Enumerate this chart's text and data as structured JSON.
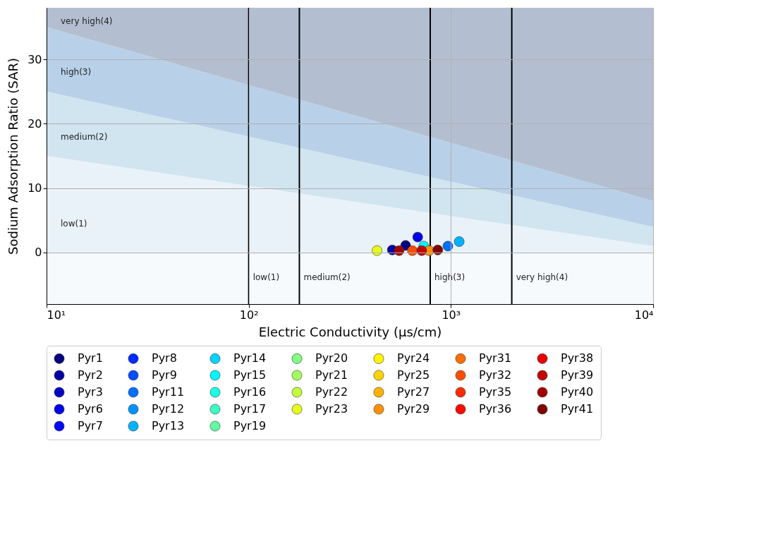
{
  "chart_data": {
    "type": "scatter",
    "xlabel": "Electric Conductivity (μs/cm)",
    "ylabel": "Sodium Adsorption Ratio (SAR)",
    "log": "x",
    "xlim": [
      10,
      10000
    ],
    "xticks": [
      {
        "value": 10,
        "label": "10¹"
      },
      {
        "value": 100,
        "label": "10²"
      },
      {
        "value": 1000,
        "label": "10³"
      },
      {
        "value": 10000,
        "label": "10⁴"
      }
    ],
    "ylim": [
      -8,
      38
    ],
    "yticks": [
      0,
      10,
      20,
      30
    ],
    "grid": true,
    "legend": "bottom",
    "stacked": true,
    "bands": [
      {
        "axis": "y",
        "from": -8,
        "to": 0,
        "color": "#f7fafd"
      }
    ],
    "ref_lines": [
      {
        "axis": "x",
        "value": 100,
        "color": "#000000",
        "label": "low(1)"
      },
      {
        "axis": "x",
        "value": 178,
        "color": "#000000",
        "label": "medium(2)"
      },
      {
        "axis": "x",
        "value": 790,
        "color": "#000000",
        "label": "high(3)"
      },
      {
        "axis": "x",
        "value": 2000,
        "color": "#000000",
        "label": "very high(4)"
      }
    ],
    "series": [
      {
        "type": "area",
        "name": "low(1)",
        "color": "#eaf2f9",
        "x": [
          10,
          10000
        ],
        "values": [
          15,
          1
        ]
      },
      {
        "type": "area",
        "name": "medium(2)",
        "color": "#d1e5f0",
        "x": [
          10,
          10000
        ],
        "values": [
          10,
          3
        ]
      },
      {
        "type": "area",
        "name": "high(3)",
        "color": "#b8d1e8",
        "x": [
          10,
          10000
        ],
        "values": [
          10,
          4
        ]
      },
      {
        "type": "area",
        "name": "very high(4)",
        "color": "#b3bfd1",
        "x": [
          10,
          10000
        ],
        "values": [
          3,
          30
        ]
      },
      {
        "name": "Pyr1",
        "color": "#000080",
        "x": [
          597
        ],
        "values": [
          1.1
        ]
      },
      {
        "name": "Pyr2",
        "color": "#0000a2",
        "x": [
          513
        ],
        "values": [
          0.4
        ]
      },
      {
        "name": "Pyr3",
        "color": "#0000c4",
        "x": [
          null
        ],
        "values": [
          null
        ]
      },
      {
        "name": "Pyr6",
        "color": "#0000e6",
        "x": [
          685
        ],
        "values": [
          2.4
        ]
      },
      {
        "name": "Pyr7",
        "color": "#0008ff",
        "x": [
          null
        ],
        "values": [
          null
        ]
      },
      {
        "name": "Pyr8",
        "color": "#002bff",
        "x": [
          null
        ],
        "values": [
          null
        ]
      },
      {
        "name": "Pyr9",
        "color": "#004dff",
        "x": [
          null
        ],
        "values": [
          null
        ]
      },
      {
        "name": "Pyr11",
        "color": "#006eff",
        "x": [
          966
        ],
        "values": [
          1.0
        ]
      },
      {
        "name": "Pyr12",
        "color": "#0091ff",
        "x": [
          null
        ],
        "values": [
          null
        ]
      },
      {
        "name": "Pyr13",
        "color": "#00b3ff",
        "x": [
          1099
        ],
        "values": [
          1.7
        ]
      },
      {
        "name": "Pyr14",
        "color": "#00d4ff",
        "x": [
          null
        ],
        "values": [
          null
        ]
      },
      {
        "name": "Pyr15",
        "color": "#00f6ff",
        "x": [
          734
        ],
        "values": [
          1.0
        ]
      },
      {
        "name": "Pyr16",
        "color": "#1affe6",
        "x": [
          null
        ],
        "values": [
          null
        ]
      },
      {
        "name": "Pyr17",
        "color": "#3bffc4",
        "x": [
          null
        ],
        "values": [
          null
        ]
      },
      {
        "name": "Pyr19",
        "color": "#5effa2",
        "x": [
          null
        ],
        "values": [
          null
        ]
      },
      {
        "name": "Pyr20",
        "color": "#80ff80",
        "x": [
          null
        ],
        "values": [
          null
        ]
      },
      {
        "name": "Pyr21",
        "color": "#a2ff5e",
        "x": [
          null
        ],
        "values": [
          null
        ]
      },
      {
        "name": "Pyr22",
        "color": "#c4ff3b",
        "x": [
          null
        ],
        "values": [
          null
        ]
      },
      {
        "name": "Pyr23",
        "color": "#e6ff1a",
        "x": [
          431
        ],
        "values": [
          0.3
        ]
      },
      {
        "name": "Pyr24",
        "color": "#fff600",
        "x": [
          null
        ],
        "values": [
          null
        ]
      },
      {
        "name": "Pyr25",
        "color": "#ffd400",
        "x": [
          null
        ],
        "values": [
          null
        ]
      },
      {
        "name": "Pyr27",
        "color": "#ffb300",
        "x": [
          null
        ],
        "values": [
          null
        ]
      },
      {
        "name": "Pyr29",
        "color": "#ff9100",
        "x": [
          780
        ],
        "values": [
          0.3
        ]
      },
      {
        "name": "Pyr31",
        "color": "#ff6e00",
        "x": [
          null
        ],
        "values": [
          null
        ]
      },
      {
        "name": "Pyr32",
        "color": "#ff4d00",
        "x": [
          645
        ],
        "values": [
          0.3
        ]
      },
      {
        "name": "Pyr35",
        "color": "#ff2b00",
        "x": [
          null
        ],
        "values": [
          null
        ]
      },
      {
        "name": "Pyr36",
        "color": "#ff0800",
        "x": [
          null
        ],
        "values": [
          null
        ]
      },
      {
        "name": "Pyr38",
        "color": "#e60000",
        "x": [
          null
        ],
        "values": [
          null
        ]
      },
      {
        "name": "Pyr39",
        "color": "#c40000",
        "x": [
          717
        ],
        "values": [
          0.3
        ]
      },
      {
        "name": "Pyr40",
        "color": "#a20000",
        "x": [
          554
        ],
        "values": [
          0.3
        ]
      },
      {
        "name": "Pyr41",
        "color": "#800000",
        "x": [
          861
        ],
        "values": [
          0.4
        ]
      }
    ]
  }
}
